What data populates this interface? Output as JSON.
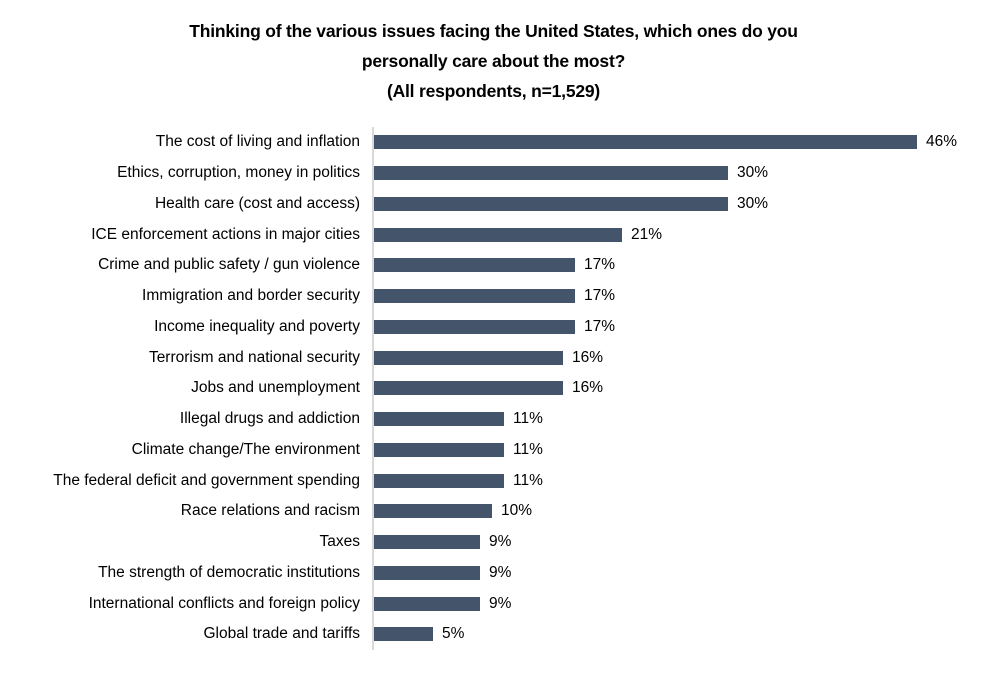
{
  "title": {
    "line1": "Thinking of the various issues facing the United States, which ones do you",
    "line2": "personally care about the most?",
    "line3": "(All respondents, n=1,529)"
  },
  "chart_data": {
    "type": "bar",
    "orientation": "horizontal",
    "title": "Thinking of the various issues facing the United States, which ones do you personally care about the most? (All respondents, n=1,529)",
    "categories": [
      "The cost of living and inflation",
      "Ethics, corruption, money in politics",
      "Health care (cost and access)",
      "ICE enforcement actions in major cities",
      "Crime and public safety / gun violence",
      "Immigration and border security",
      "Income inequality and poverty",
      "Terrorism and national security",
      "Jobs and unemployment",
      "Illegal drugs and addiction",
      "Climate change/The environment",
      "The federal deficit and government spending",
      "Race relations and racism",
      "Taxes",
      "The strength of democratic institutions",
      "International conflicts and foreign policy",
      "Global trade and tariffs"
    ],
    "values": [
      46,
      30,
      30,
      21,
      17,
      17,
      17,
      16,
      16,
      11,
      11,
      11,
      10,
      9,
      9,
      9,
      5
    ],
    "value_suffix": "%",
    "xlim": [
      0,
      50
    ],
    "grid": false,
    "legend": false,
    "bar_color": "#44546A",
    "axis_line_color": "#D9D9D9",
    "text_color": "#000000",
    "background_color": "#FFFFFF"
  }
}
